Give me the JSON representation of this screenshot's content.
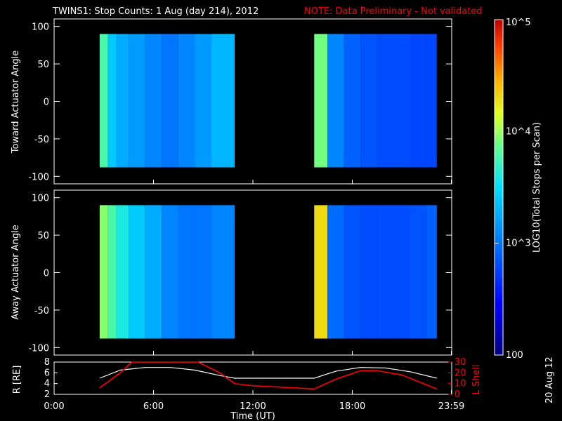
{
  "title": {
    "main": "TWINS1: Stop Counts:  1 Aug (day 214), 2012",
    "note": "NOTE: Data Preliminary - Not validated"
  },
  "panels": [
    {
      "id": "toward",
      "ylabel": "Toward Actuator Angle",
      "yticks": [
        "100",
        "50",
        "0",
        "-50",
        "-100"
      ]
    },
    {
      "id": "away",
      "ylabel": "Away Actuator Angle",
      "yticks": [
        "100",
        "50",
        "0",
        "-50",
        "-100"
      ]
    }
  ],
  "colorbar": {
    "label": "LOG10(Total Stops per Scan)",
    "ticks": [
      "10^5",
      "10^4",
      "10^3",
      "100"
    ]
  },
  "bottom_panel": {
    "ylabel_left": "R [RE]",
    "ylabel_right": "L Shell",
    "left_ticks": [
      "8",
      "6",
      "4",
      "2"
    ],
    "right_ticks": [
      "30",
      "20",
      "10",
      "0"
    ]
  },
  "xaxis": {
    "label": "Time (UT)",
    "ticks": [
      "0:00",
      "6:00",
      "12:00",
      "18:00",
      "23:59"
    ]
  },
  "date_stamp": "20 Aug 12",
  "colors": {
    "background": "#000000",
    "note": "#ff0000",
    "lshell": "#ff0000",
    "radius": "#ffffff"
  },
  "chart_data": [
    {
      "type": "heatmap",
      "title": "Toward Actuator Angle",
      "xlabel": "",
      "ylabel": "Toward Actuator Angle",
      "xlim": [
        0,
        24
      ],
      "ylim": [
        -110,
        110
      ],
      "y_extent": [
        -88,
        90
      ],
      "color_scale": "log",
      "zlim": [
        100,
        100000
      ],
      "segments": [
        {
          "start_h": 2.75,
          "end_h": 10.9,
          "x": [
            3.0,
            3.5,
            4.0,
            5.0,
            6.0,
            7.0,
            8.0,
            9.0,
            10.0
          ],
          "z": [
            6000,
            2500,
            1800,
            1500,
            1200,
            1000,
            1200,
            1500,
            2000
          ]
        },
        {
          "start_h": 15.7,
          "end_h": 23.1,
          "x": [
            16.0,
            17.0,
            18.0,
            19.0,
            20.0,
            21.0,
            22.0,
            23.0
          ],
          "z": [
            8000,
            1200,
            800,
            700,
            650,
            650,
            600,
            600
          ]
        }
      ]
    },
    {
      "type": "heatmap",
      "title": "Away Actuator Angle",
      "xlabel": "",
      "ylabel": "Away Actuator Angle",
      "xlim": [
        0,
        24
      ],
      "ylim": [
        -110,
        110
      ],
      "y_extent": [
        -88,
        90
      ],
      "color_scale": "log",
      "zlim": [
        100,
        100000
      ],
      "segments": [
        {
          "start_h": 2.75,
          "end_h": 10.9,
          "x": [
            3.0,
            3.5,
            4.0,
            5.0,
            6.0,
            7.0,
            8.0,
            9.0,
            10.0
          ],
          "z": [
            9000,
            6000,
            4000,
            2500,
            1800,
            1200,
            1000,
            1000,
            1200
          ]
        },
        {
          "start_h": 15.7,
          "end_h": 23.1,
          "x": [
            16.0,
            17.0,
            18.0,
            19.0,
            20.0,
            21.0,
            22.0,
            23.0
          ],
          "z": [
            20000,
            900,
            700,
            650,
            650,
            650,
            700,
            800
          ]
        }
      ]
    },
    {
      "type": "line",
      "title": "",
      "xlabel": "Time (UT)",
      "ylabel": "R [RE]",
      "xlim": [
        0,
        24
      ],
      "ylim": [
        2,
        8
      ],
      "series": [
        {
          "name": "R [RE]",
          "x": [
            2.75,
            4.0,
            5.5,
            7.0,
            8.5,
            10.0,
            10.9,
            12.0,
            13.5,
            15.7,
            17.0,
            18.5,
            20.0,
            21.5,
            23.1
          ],
          "y": [
            5.0,
            6.5,
            7.0,
            7.0,
            6.5,
            5.5,
            5.0,
            5.0,
            5.0,
            5.0,
            6.3,
            7.0,
            6.9,
            6.2,
            5.0
          ]
        }
      ],
      "series_right": [
        {
          "name": "L Shell",
          "axis": "right",
          "ylim": [
            0,
            30
          ],
          "x": [
            2.75,
            4.0,
            4.7,
            8.7,
            10.0,
            10.9,
            12.0,
            15.7,
            17.0,
            18.5,
            19.5,
            21.0,
            23.1
          ],
          "y": [
            6,
            20,
            32,
            32,
            20,
            10,
            8,
            5,
            14,
            22,
            22,
            18,
            5
          ]
        }
      ]
    }
  ]
}
